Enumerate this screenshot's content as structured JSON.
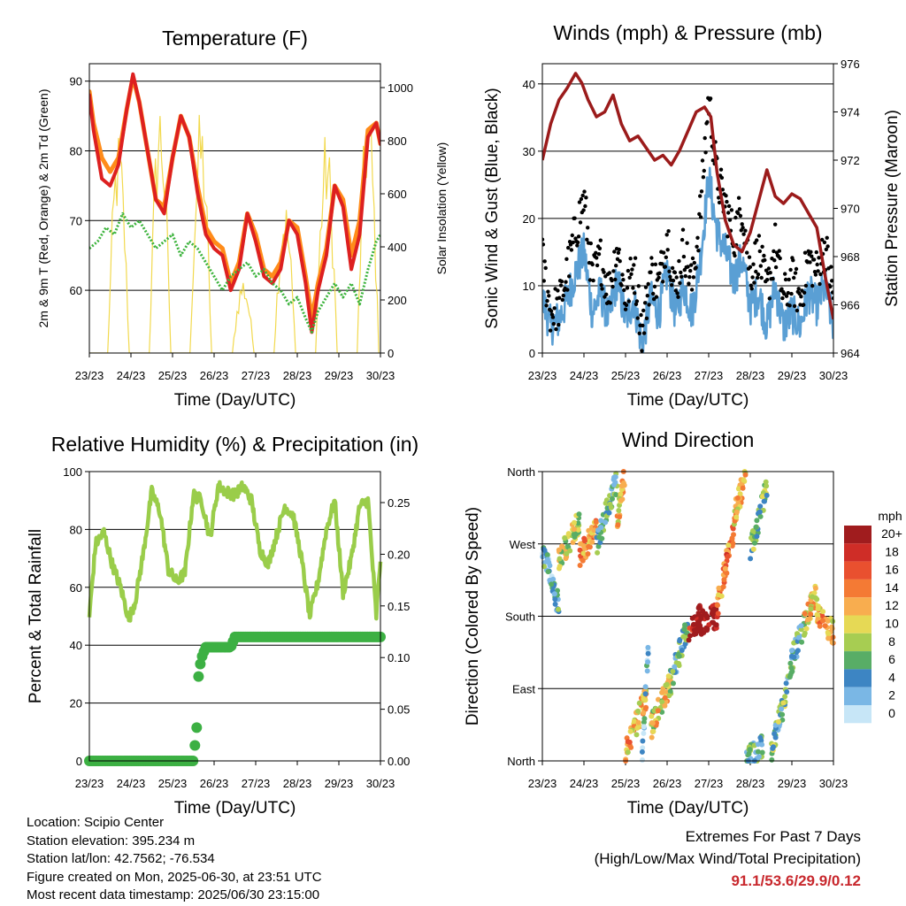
{
  "figure": {
    "x_tick_labels": [
      "23/23",
      "24/23",
      "25/23",
      "26/23",
      "27/23",
      "28/23",
      "29/23",
      "30/23"
    ],
    "x_axis_label": "Time (Day/UTC)"
  },
  "chart_data": [
    {
      "type": "line",
      "title": "Temperature (F)",
      "xlabel": "Time (Day/UTC)",
      "ylabel": "2m & 9m T (Red, Orange) & 2m Td (Green)",
      "y2label": "Solar Insolation (Yellow)",
      "ylim": [
        51,
        92.5
      ],
      "yticks": [
        60,
        70,
        80,
        90
      ],
      "y2lim": [
        0,
        1090
      ],
      "y2ticks": [
        0,
        200,
        400,
        600,
        800,
        1000
      ],
      "grid": true,
      "colors": {
        "t2m": "#dd2020",
        "t9m": "#ff8c1a",
        "td2m": "#3cb33c",
        "solar": "#f2d94e"
      },
      "series": [
        {
          "key": "t9m",
          "x": [
            0,
            0.1,
            0.3,
            0.5,
            0.7,
            0.9,
            1.05,
            1.2,
            1.4,
            1.6,
            1.8,
            2.0,
            2.2,
            2.4,
            2.6,
            2.8,
            3.0,
            3.2,
            3.4,
            3.6,
            3.8,
            4.0,
            4.2,
            4.4,
            4.6,
            4.8,
            5.0,
            5.2,
            5.35,
            5.5,
            5.7,
            5.9,
            6.1,
            6.3,
            6.5,
            6.7,
            6.9,
            7.0
          ],
          "y": [
            88.5,
            84,
            79,
            77,
            79,
            86,
            90.6,
            87,
            80,
            73,
            72,
            79,
            85,
            82,
            75,
            69,
            67,
            66,
            61,
            64,
            71,
            68,
            63,
            62,
            64,
            70,
            69,
            62,
            56,
            61,
            66,
            75,
            73,
            65,
            70,
            83,
            84,
            81
          ]
        },
        {
          "key": "t2m",
          "x": [
            0,
            0.1,
            0.3,
            0.5,
            0.7,
            0.9,
            1.05,
            1.2,
            1.4,
            1.6,
            1.8,
            2.0,
            2.2,
            2.4,
            2.6,
            2.8,
            3.0,
            3.2,
            3.4,
            3.6,
            3.8,
            4.0,
            4.2,
            4.4,
            4.6,
            4.8,
            5.0,
            5.2,
            5.35,
            5.5,
            5.7,
            5.9,
            6.1,
            6.3,
            6.5,
            6.7,
            6.9,
            7.0
          ],
          "y": [
            88,
            83,
            76,
            75,
            78,
            86,
            91,
            87,
            80,
            73,
            71,
            79,
            85,
            82,
            74,
            68,
            66,
            65,
            60,
            63,
            71,
            67,
            62,
            61,
            63,
            70,
            68,
            61,
            54,
            60,
            65,
            75,
            72,
            63,
            68,
            82,
            84,
            81
          ]
        },
        {
          "key": "td2m",
          "x": [
            0,
            0.2,
            0.4,
            0.6,
            0.8,
            1.0,
            1.2,
            1.4,
            1.6,
            1.8,
            2.0,
            2.2,
            2.4,
            2.6,
            2.8,
            3.0,
            3.2,
            3.4,
            3.6,
            3.8,
            4.0,
            4.2,
            4.4,
            4.6,
            4.8,
            5.0,
            5.2,
            5.35,
            5.5,
            5.7,
            5.9,
            6.1,
            6.3,
            6.5,
            6.7,
            6.9,
            7.0
          ],
          "y": [
            66,
            67,
            69,
            68,
            71,
            69,
            70,
            68,
            66,
            67,
            68,
            65,
            67,
            66,
            64,
            62,
            60,
            62,
            63,
            64,
            62,
            63,
            61,
            60,
            58,
            59,
            56,
            54,
            57,
            59,
            61,
            59,
            61,
            58,
            63,
            67,
            68
          ]
        }
      ],
      "solar_peaks": [
        {
          "x": 0.72,
          "y": 850
        },
        {
          "x": 1.72,
          "y": 1000
        },
        {
          "x": 2.7,
          "y": 930
        },
        {
          "x": 3.72,
          "y": 300
        },
        {
          "x": 4.72,
          "y": 600
        },
        {
          "x": 5.72,
          "y": 850
        },
        {
          "x": 6.72,
          "y": 1000
        }
      ]
    },
    {
      "type": "line",
      "title": "Winds (mph) & Pressure (mb)",
      "xlabel": "Time (Day/UTC)",
      "ylabel": "Sonic Wind & Gust (Blue, Black)",
      "y2label": "Station Pressure (Maroon)",
      "ylim": [
        0,
        43
      ],
      "yticks": [
        0,
        10,
        20,
        30,
        40
      ],
      "y2lim": [
        964,
        976
      ],
      "y2ticks": [
        964,
        966,
        968,
        970,
        972,
        974,
        976
      ],
      "grid": true,
      "colors": {
        "wind": "#5a9fd4",
        "gust": "#000000",
        "pressure": "#9b1b1b"
      },
      "series": [
        {
          "key": "gust",
          "x": [
            0,
            0.2,
            0.4,
            0.6,
            0.8,
            1.0,
            1.2,
            1.4,
            1.6,
            1.8,
            2.0,
            2.2,
            2.4,
            2.6,
            2.8,
            3.0,
            3.2,
            3.4,
            3.6,
            3.8,
            4.0,
            4.2,
            4.4,
            4.6,
            4.8,
            5.0,
            5.2,
            5.4,
            5.6,
            5.8,
            6.0,
            6.2,
            6.4,
            6.6,
            6.8,
            7.0
          ],
          "y": [
            14,
            6,
            7,
            12,
            18,
            23,
            11,
            14,
            9,
            16,
            8,
            13,
            3,
            12,
            10,
            18,
            9,
            16,
            10,
            21,
            38,
            26,
            22,
            17,
            22,
            12,
            15,
            9,
            16,
            8,
            11,
            8,
            14,
            12,
            16,
            8
          ]
        },
        {
          "key": "wind",
          "x": [
            0,
            0.2,
            0.4,
            0.6,
            0.8,
            1.0,
            1.2,
            1.4,
            1.6,
            1.8,
            2.0,
            2.2,
            2.4,
            2.6,
            2.8,
            3.0,
            3.2,
            3.4,
            3.6,
            3.8,
            4.0,
            4.2,
            4.4,
            4.6,
            4.8,
            5.0,
            5.2,
            5.4,
            5.6,
            5.8,
            6.0,
            6.2,
            6.4,
            6.6,
            6.8,
            7.0
          ],
          "y": [
            8,
            4,
            5,
            8,
            12,
            15,
            6,
            9,
            5,
            11,
            5,
            8,
            1,
            8,
            6,
            12,
            6,
            10,
            6,
            14,
            26,
            18,
            15,
            11,
            14,
            7,
            9,
            4,
            10,
            4,
            6,
            4,
            9,
            7,
            10,
            4
          ]
        },
        {
          "key": "pressure",
          "x": [
            0,
            0.2,
            0.4,
            0.6,
            0.8,
            0.95,
            1.1,
            1.3,
            1.5,
            1.7,
            1.9,
            2.1,
            2.3,
            2.5,
            2.7,
            2.9,
            3.1,
            3.3,
            3.5,
            3.7,
            3.9,
            4.05,
            4.2,
            4.4,
            4.6,
            4.8,
            5.0,
            5.2,
            5.4,
            5.6,
            5.8,
            6.0,
            6.2,
            6.4,
            6.6,
            6.8,
            7.0
          ],
          "y": [
            972,
            973.5,
            974.5,
            975,
            975.6,
            975.2,
            974.5,
            973.8,
            974,
            974.7,
            973.5,
            972.8,
            973,
            972.5,
            972,
            972.2,
            971.8,
            972.4,
            973.2,
            974,
            974.2,
            973.8,
            971.5,
            969.5,
            968.5,
            968.2,
            969,
            970.3,
            971.6,
            970.5,
            970.2,
            970.6,
            970.4,
            969.8,
            969.2,
            967.2,
            965.4
          ]
        }
      ]
    },
    {
      "type": "line",
      "title": "Relative Humidity (%) & Precipitation (in)",
      "xlabel": "Time (Day/UTC)",
      "ylabel": "Percent & Total Rainfall",
      "ylim": [
        0,
        100
      ],
      "yticks": [
        0,
        20,
        40,
        60,
        80,
        100
      ],
      "y2lim": [
        0,
        0.28
      ],
      "y2ticks": [
        0.0,
        0.05,
        0.1,
        0.15,
        0.2,
        0.25
      ],
      "grid": true,
      "colors": {
        "rh": "#9acd4a",
        "precip": "#3cb043"
      },
      "series": [
        {
          "key": "rh",
          "x": [
            0,
            0.15,
            0.35,
            0.55,
            0.75,
            0.95,
            1.1,
            1.3,
            1.5,
            1.7,
            1.9,
            2.1,
            2.3,
            2.5,
            2.7,
            2.9,
            3.1,
            3.3,
            3.5,
            3.7,
            3.9,
            4.1,
            4.3,
            4.5,
            4.7,
            4.9,
            5.1,
            5.3,
            5.5,
            5.7,
            5.9,
            6.1,
            6.3,
            6.5,
            6.7,
            6.9,
            7.0
          ],
          "y": [
            50,
            75,
            79,
            68,
            60,
            49,
            55,
            72,
            93,
            86,
            66,
            62,
            65,
            92,
            90,
            77,
            95,
            93,
            92,
            95,
            90,
            73,
            68,
            78,
            88,
            85,
            70,
            50,
            62,
            80,
            90,
            58,
            70,
            88,
            90,
            50,
            70
          ]
        },
        {
          "key": "precip",
          "x": [
            0,
            2.5,
            2.55,
            2.58,
            2.6,
            2.62,
            2.65,
            2.7,
            2.8,
            3.0,
            3.2,
            3.4,
            3.5,
            3.6,
            4.0,
            5.0,
            6.0,
            7.0
          ],
          "y": [
            0,
            0,
            0.02,
            0.03,
            0.065,
            0.08,
            0.09,
            0.1,
            0.11,
            0.11,
            0.11,
            0.11,
            0.12,
            0.12,
            0.12,
            0.12,
            0.12,
            0.12
          ]
        }
      ]
    },
    {
      "type": "scatter",
      "title": "Wind Direction",
      "xlabel": "Time (Day/UTC)",
      "ylabel": "Direction (Colored By Speed)",
      "ylim": [
        0,
        360
      ],
      "yticks": [
        0,
        90,
        180,
        270,
        360
      ],
      "yticklabels": [
        "North",
        "East",
        "South",
        "West",
        "North"
      ],
      "grid": true,
      "colorbar": {
        "title": "mph",
        "labels": [
          "20+",
          "18",
          "16",
          "14",
          "12",
          "10",
          "8",
          "6",
          "4",
          "2",
          "0"
        ],
        "colors": [
          "#a01c1e",
          "#cf2d27",
          "#e9502f",
          "#f47a34",
          "#f8ad4f",
          "#e6d955",
          "#a7cd52",
          "#58ad66",
          "#3d85c3",
          "#7ab7e5",
          "#c7e6f7"
        ]
      },
      "clusters": [
        {
          "x0": 0.0,
          "x1": 0.4,
          "d0": 265,
          "d1": 190,
          "s": 4
        },
        {
          "x0": 0.4,
          "x1": 0.9,
          "d0": 250,
          "d1": 300,
          "s": 9
        },
        {
          "x0": 0.9,
          "x1": 1.3,
          "d0": 255,
          "d1": 290,
          "s": 13
        },
        {
          "x0": 1.3,
          "x1": 1.8,
          "d0": 270,
          "d1": 350,
          "s": 5
        },
        {
          "x0": 1.8,
          "x1": 2.0,
          "d0": 300,
          "d1": 360,
          "s": 11
        },
        {
          "x0": 2.0,
          "x1": 2.5,
          "d0": 10,
          "d1": 80,
          "s": 12
        },
        {
          "x0": 2.4,
          "x1": 2.55,
          "d0": 0,
          "d1": 150,
          "s": 2
        },
        {
          "x0": 2.6,
          "x1": 3.1,
          "d0": 40,
          "d1": 100,
          "s": 10
        },
        {
          "x0": 3.1,
          "x1": 3.5,
          "d0": 100,
          "d1": 170,
          "s": 5
        },
        {
          "x0": 3.5,
          "x1": 3.8,
          "d0": 160,
          "d1": 180,
          "s": 20
        },
        {
          "x0": 3.7,
          "x1": 4.2,
          "d0": 170,
          "d1": 180,
          "s": 21
        },
        {
          "x0": 4.2,
          "x1": 4.6,
          "d0": 190,
          "d1": 290,
          "s": 14
        },
        {
          "x0": 4.6,
          "x1": 4.9,
          "d0": 300,
          "d1": 360,
          "s": 11
        },
        {
          "x0": 4.9,
          "x1": 5.3,
          "d0": 0,
          "d1": 20,
          "s": 5
        },
        {
          "x0": 5.0,
          "x1": 5.4,
          "d0": 260,
          "d1": 340,
          "s": 7
        },
        {
          "x0": 5.5,
          "x1": 5.9,
          "d0": 10,
          "d1": 90,
          "s": 6
        },
        {
          "x0": 5.9,
          "x1": 6.3,
          "d0": 110,
          "d1": 170,
          "s": 5
        },
        {
          "x0": 6.3,
          "x1": 6.6,
          "d0": 170,
          "d1": 210,
          "s": 11
        },
        {
          "x0": 6.6,
          "x1": 7.0,
          "d0": 180,
          "d1": 160,
          "s": 12
        }
      ]
    }
  ],
  "station": {
    "location": "Location: Scipio Center",
    "elevation": "Station elevation: 395.234 m",
    "latlon": "Station lat/lon: 42.7562; -76.534",
    "created": "Figure created on Mon, 2025-06-30, at 23:51 UTC",
    "timestamp": "Most recent data timestamp: 2025/06/30 23:15:00"
  },
  "extremes": {
    "title": "Extremes For Past 7 Days",
    "subtitle": "(High/Low/Max Wind/Total Precipitation)",
    "values": "91.1/53.6/29.9/0.12"
  }
}
